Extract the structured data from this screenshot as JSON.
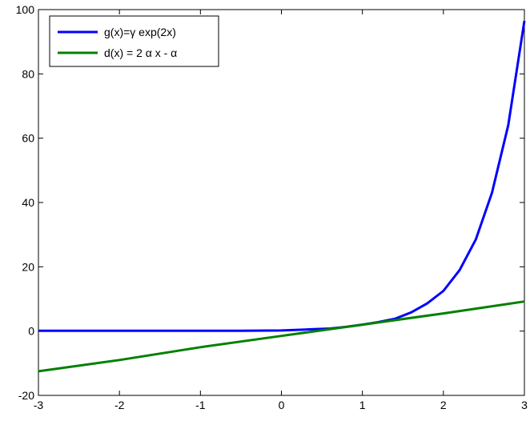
{
  "chart_data": {
    "type": "line",
    "title": "",
    "xlabel": "",
    "ylabel": "",
    "xlim": [
      -3,
      3
    ],
    "ylim": [
      -20,
      100
    ],
    "x_ticks": [
      "-3",
      "-2",
      "-1",
      "0",
      "1",
      "2",
      "3"
    ],
    "y_ticks": [
      "-20",
      "0",
      "20",
      "40",
      "60",
      "80",
      "100"
    ],
    "grid": false,
    "legend_position": "top-left",
    "series": [
      {
        "name": "g(x)=γ exp(2x)",
        "color": "#0000ff",
        "x": [
          -3,
          -2.5,
          -2,
          -1.5,
          -1,
          -0.5,
          0,
          0.2,
          0.4,
          0.6,
          0.8,
          1.0,
          1.2,
          1.4,
          1.6,
          1.8,
          2.0,
          2.2,
          2.4,
          2.6,
          2.8,
          3.0
        ],
        "y": [
          0.1,
          0.1,
          0.1,
          0.1,
          0.1,
          0.1,
          0.2,
          0.4,
          0.6,
          0.8,
          1.3,
          2.0,
          2.8,
          3.8,
          5.8,
          8.6,
          12.5,
          19.0,
          28.5,
          43.0,
          64.0,
          96.5
        ]
      },
      {
        "name": "d(x) = 2 α x - α",
        "color": "#008000",
        "x": [
          -3,
          -2,
          -1,
          0,
          1,
          2,
          3
        ],
        "y": [
          -12.5,
          -9.0,
          -5.0,
          -1.5,
          2.0,
          5.5,
          9.2
        ]
      }
    ]
  }
}
